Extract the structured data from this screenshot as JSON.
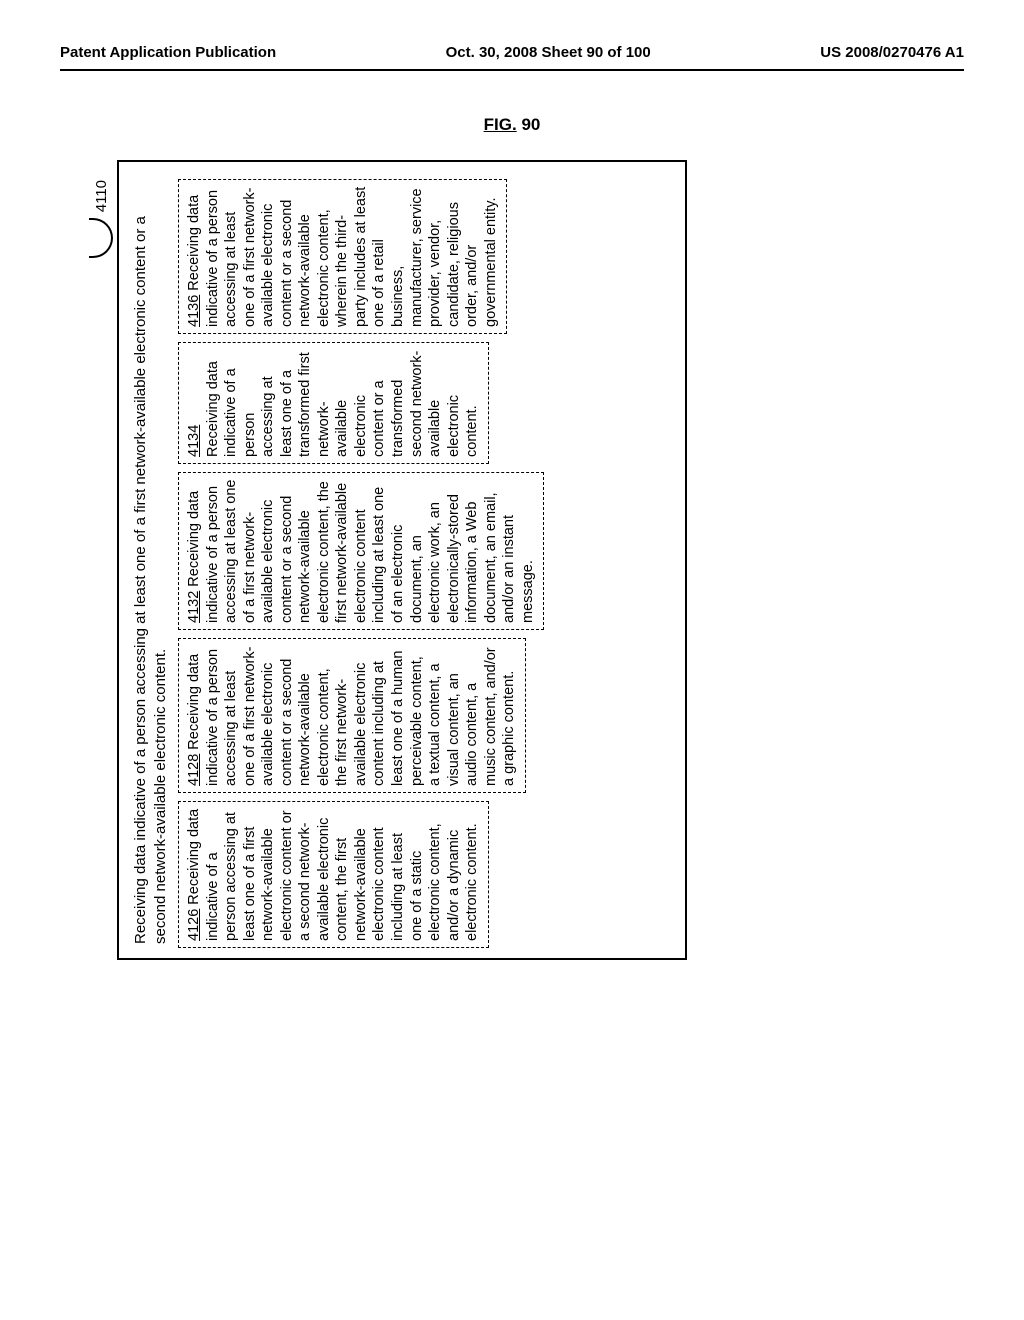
{
  "header": {
    "left": "Patent Application Publication",
    "center": "Oct. 30, 2008  Sheet 90 of 100",
    "right": "US 2008/0270476 A1"
  },
  "figure": {
    "label_prefix": "FIG.",
    "label_number": "90",
    "reference_number": "4110",
    "main_title": "Receiving data indicative of a person accessing at least one of a first network-available electronic content or a second network-available electronic content."
  },
  "boxes": [
    {
      "num": "4126",
      "text": "  Receiving data indicative of a person accessing at least one of a first network-available electronic content or a second network-available electronic content, the first network-available electronic content including at least one of a static electronic content, and/or a dynamic electronic content."
    },
    {
      "num": "4128",
      "text": "  Receiving data indicative of a person accessing at least one of a first network-available electronic content or a second network-available electronic content, the first network-available electronic content including at least one of a human perceivable content, a textual content, a visual content, an audio content, a music content, and/or a graphic content."
    },
    {
      "num": "4132",
      "text": "  Receiving data indicative of a person accessing at least one of a first network-available electronic content or a second network-available electronic content, the first network-available electronic content including at least one of an electronic document, an electronic work, an electronically-stored information, a Web document, an email, and/or an instant message."
    },
    {
      "num": "4134",
      "text": " Receiving data indicative of a person accessing at least one of a transformed first network-available electronic content or a transformed second network-available electronic content."
    },
    {
      "num": "4136",
      "text": "  Receiving data indicative of a person accessing at least one of a first network-available electronic content or a second network-available electronic content, wherein the third-party includes at least one of a retail business, manufacturer, service provider, vendor, candidate, religious order, and/or governmental entity."
    }
  ],
  "style": {
    "background": "#ffffff",
    "text_color": "#000000",
    "border_color": "#000000",
    "font_family": "Arial",
    "header_fontsize": 15,
    "fig_fontsize": 17,
    "body_fontsize": 15,
    "box_fontsize": 14.5,
    "dash_pattern": "1.5px dashed"
  },
  "page_number": ""
}
